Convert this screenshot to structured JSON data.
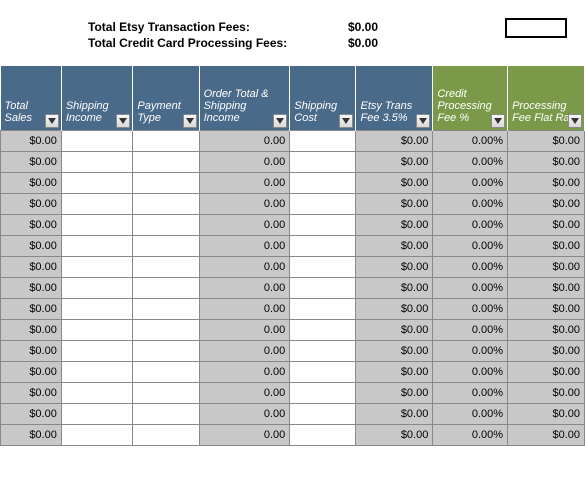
{
  "summary": {
    "etsy_fees_label": "Total Etsy Transaction Fees:",
    "etsy_fees_value": "$0.00",
    "cc_fees_label": "Total Credit Card Processing Fees:",
    "cc_fees_value": "$0.00"
  },
  "columns": [
    {
      "label": "Total Sales",
      "color": "blue",
      "width": 57
    },
    {
      "label": "Shipping Income",
      "color": "blue",
      "width": 67
    },
    {
      "label": "Payment Type",
      "color": "blue",
      "width": 62
    },
    {
      "label": "Order Total & Shipping Income",
      "color": "blue",
      "width": 85
    },
    {
      "label": "Shipping Cost",
      "color": "blue",
      "width": 62
    },
    {
      "label": "Etsy Trans Fee 3.5%",
      "color": "blue",
      "width": 72
    },
    {
      "label": "Credit Processing Fee %",
      "color": "green",
      "width": 70
    },
    {
      "label": "Processing Fee Flat Rate",
      "color": "green",
      "width": 72
    }
  ],
  "colors": {
    "header_blue": "#4a6a8a",
    "header_green": "#7a9a4a",
    "cell_grey": "#c8c8c8",
    "cell_white": "#ffffff",
    "border": "#888888"
  },
  "row_count": 15,
  "row_template": {
    "total_sales": "$0.00",
    "shipping_income": "",
    "payment_type": "",
    "order_total": "0.00",
    "shipping_cost": "",
    "etsy_fee": "$0.00",
    "cc_fee_pct": "0.00%",
    "cc_fee_flat": "$0.00"
  },
  "cell_bg": [
    "grey",
    "white",
    "white",
    "grey",
    "white",
    "grey",
    "grey",
    "grey"
  ]
}
